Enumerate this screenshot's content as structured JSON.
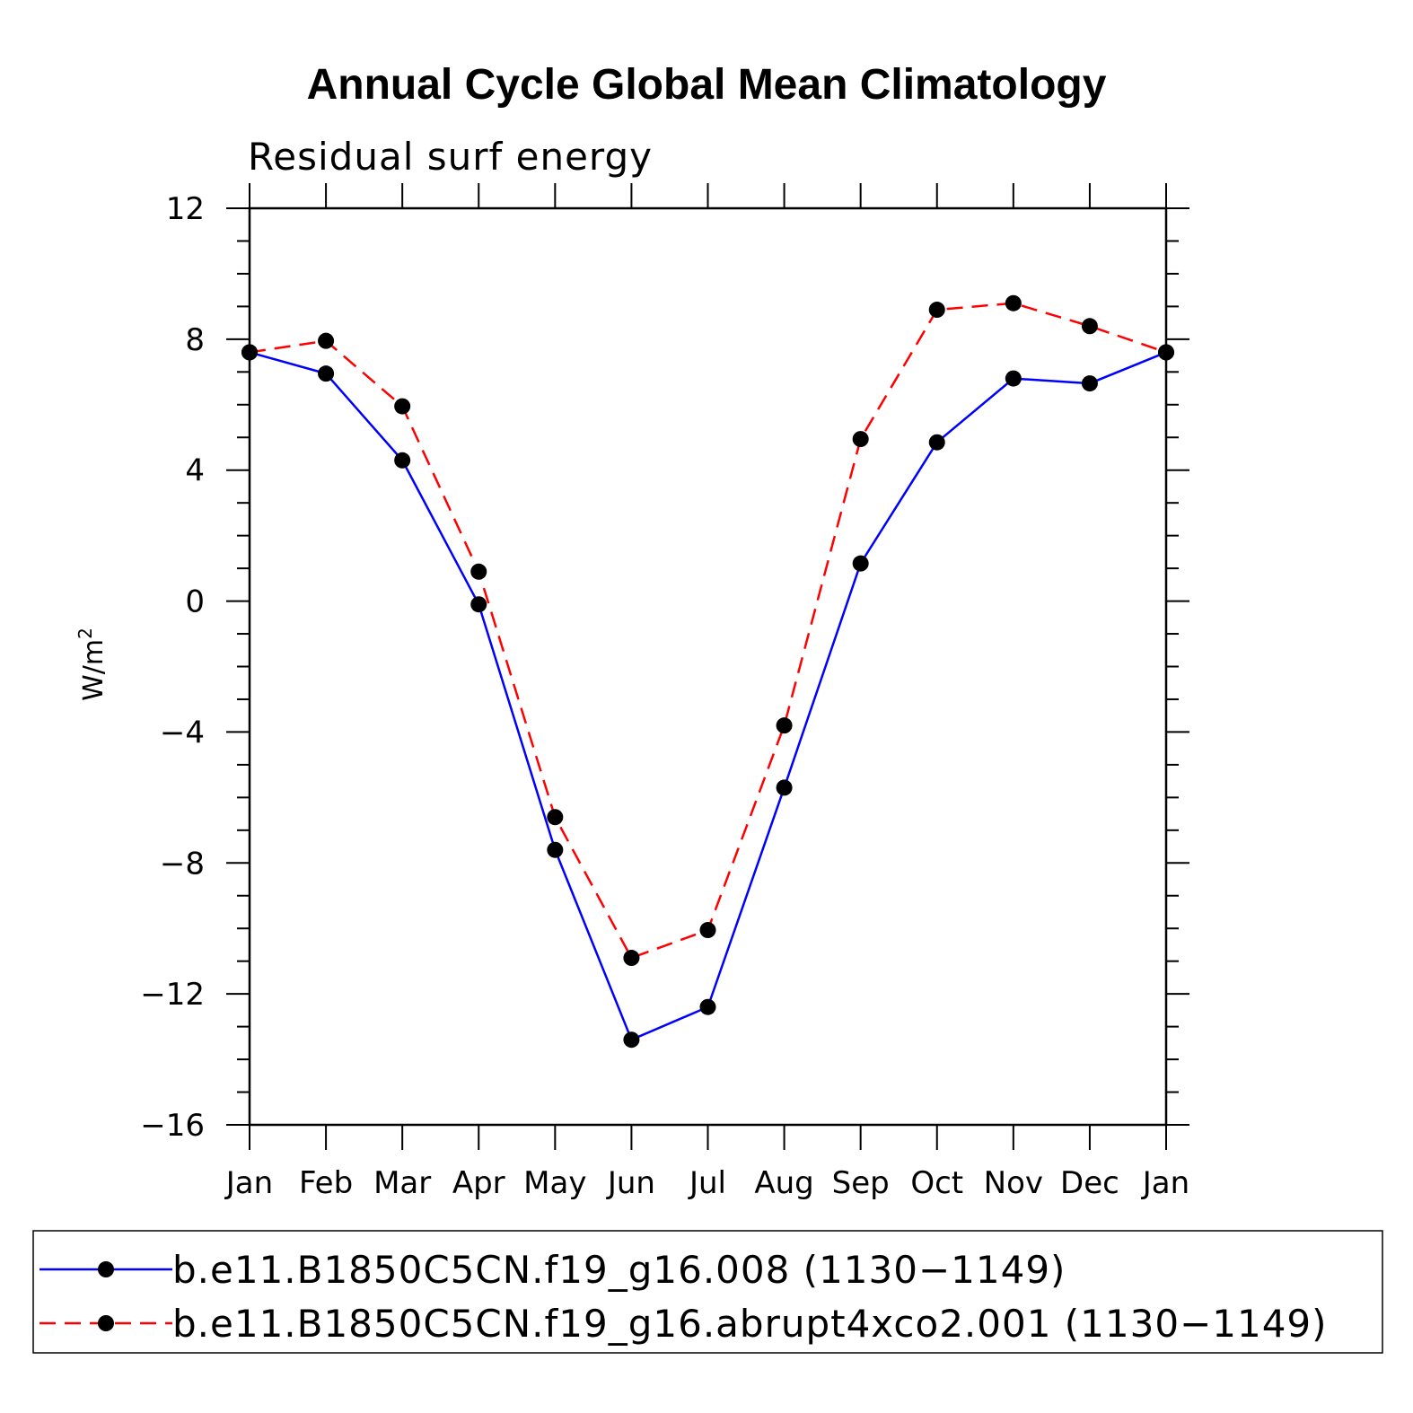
{
  "chart_data": {
    "type": "line",
    "title": "Annual Cycle Global Mean Climatology",
    "subtitle": "Residual surf energy",
    "ylabel": "W/m",
    "ylabel_sup": "2",
    "xlabel": "",
    "categories": [
      "Jan",
      "Feb",
      "Mar",
      "Apr",
      "May",
      "Jun",
      "Jul",
      "Aug",
      "Sep",
      "Oct",
      "Nov",
      "Dec",
      "Jan"
    ],
    "ylim": [
      -16,
      12
    ],
    "yticks": [
      12,
      8,
      4,
      0,
      -4,
      -8,
      -12,
      -16
    ],
    "ytick_labels": [
      "12",
      "8",
      "4",
      "0",
      "−4",
      "−8",
      "−12",
      "−16"
    ],
    "grid": false,
    "legend_position": "bottom",
    "series": [
      {
        "name": "b.e11.B1850C5CN.f19_g16.008 (1130−1149)",
        "color": "#0000ff",
        "dash": "solid",
        "values": [
          7.6,
          6.95,
          4.3,
          -0.1,
          -7.6,
          -13.4,
          -12.4,
          -5.7,
          1.15,
          4.85,
          6.8,
          6.65,
          7.6
        ]
      },
      {
        "name": "b.e11.B1850C5CN.f19_g16.abrupt4xco2.001 (1130−1149)",
        "color": "#ff0000",
        "dash": "dashed",
        "values": [
          7.6,
          7.95,
          5.95,
          0.9,
          -6.6,
          -10.9,
          -10.05,
          -3.8,
          4.95,
          8.9,
          9.1,
          8.4,
          7.6
        ]
      }
    ]
  }
}
